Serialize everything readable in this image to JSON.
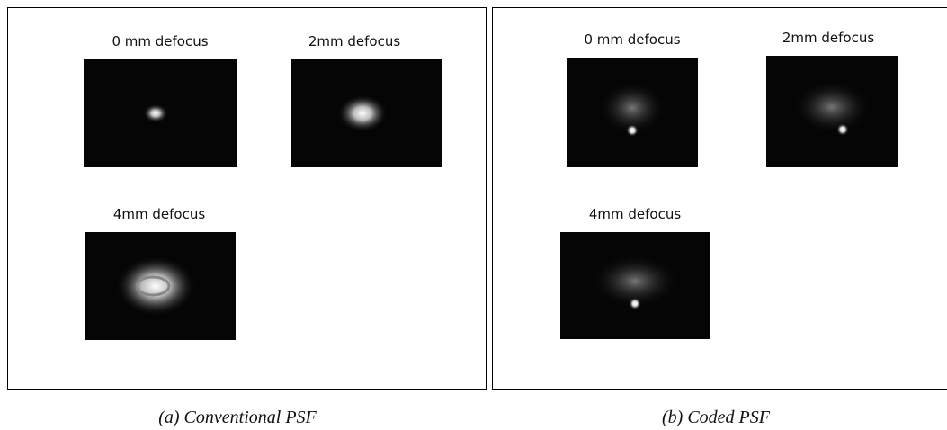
{
  "panels": [
    {
      "caption": "(a) Conventional PSF",
      "images": [
        {
          "label": "0 mm defocus"
        },
        {
          "label": "2mm defocus"
        },
        {
          "label": "4mm defocus"
        }
      ]
    },
    {
      "caption": "(b) Coded PSF",
      "images": [
        {
          "label": "0 mm defocus"
        },
        {
          "label": "2mm defocus"
        },
        {
          "label": "4mm defocus"
        }
      ]
    }
  ]
}
